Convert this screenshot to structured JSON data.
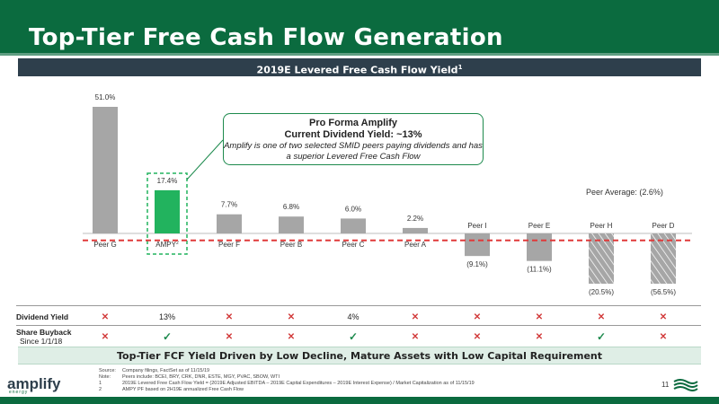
{
  "header": {
    "title": "Top-Tier Free Cash Flow Generation"
  },
  "subtitle": {
    "text": "2019E Levered Free Cash Flow Yield",
    "footnote_mark": "1"
  },
  "callout": {
    "title": "Pro Forma Amplify",
    "subtitle": "Current Dividend Yield: ~13%",
    "body": "Amplify is one of two selected SMID peers paying dividends and has a superior Levered Free Cash Flow"
  },
  "peer_average_label": "Peer Average: (2.6%)",
  "chart_data": {
    "type": "bar",
    "title": "2019E Levered Free Cash Flow Yield",
    "categories": [
      "Peer G",
      "AMPY",
      "Peer F",
      "Peer B",
      "Peer C",
      "Peer A",
      "Peer I",
      "Peer E",
      "Peer H",
      "Peer D"
    ],
    "values": [
      51.0,
      17.4,
      7.7,
      6.8,
      6.0,
      2.2,
      -9.1,
      -11.1,
      -20.5,
      -56.5
    ],
    "value_labels": [
      "51.0%",
      "17.4%",
      "7.7%",
      "6.8%",
      "6.0%",
      "2.2%",
      "(9.1%)",
      "(11.1%)",
      "(20.5%)",
      "(56.5%)"
    ],
    "highlight": "AMPY",
    "highlight_superscript": "2",
    "truncated_bars": [
      "Peer H",
      "Peer D"
    ],
    "reference_line": {
      "label": "Peer Average: (2.6%)",
      "value": -2.6
    },
    "colors": {
      "bar": "#a6a6a6",
      "highlight": "#22b35e",
      "reference": "#e03a3a",
      "highlight_box": "#22b35e"
    },
    "grid": false
  },
  "table": {
    "rows": [
      {
        "label": "Dividend Yield",
        "sublabel": "",
        "cells": [
          "✕",
          "13%",
          "✕",
          "✕",
          "4%",
          "✕",
          "✕",
          "✕",
          "✕",
          "✕"
        ]
      },
      {
        "label": "Share Buyback",
        "sublabel": "Since 1/1/18",
        "cells": [
          "✕",
          "✓",
          "✕",
          "✕",
          "✓",
          "✕",
          "✕",
          "✕",
          "✓",
          "✕"
        ]
      }
    ]
  },
  "banner": {
    "text": "Top-Tier FCF Yield Driven by Low Decline, Mature Assets with Low Capital Requirement"
  },
  "notes": [
    {
      "key": "Source:",
      "text": "Company filings, FactSet as of 11/15/19"
    },
    {
      "key": "Note:",
      "text": "Peers include: BCEI, BRY, CRK, DNR, ESTE, MGY, PVAC, SBOW, WTI"
    },
    {
      "key": "1",
      "text": "2019E Levered Free Cash Flow Yield = (2019E Adjusted EBITDA – 2019E Capital Expenditures – 2019E Interest Expense) / Market Capitalization as of 11/15/19"
    },
    {
      "key": "2",
      "text": "AMPY PF based on 2H19E annualized Free Cash Flow"
    }
  ],
  "logo": {
    "name": "amplify",
    "sub": "energy"
  },
  "page_number": "11"
}
